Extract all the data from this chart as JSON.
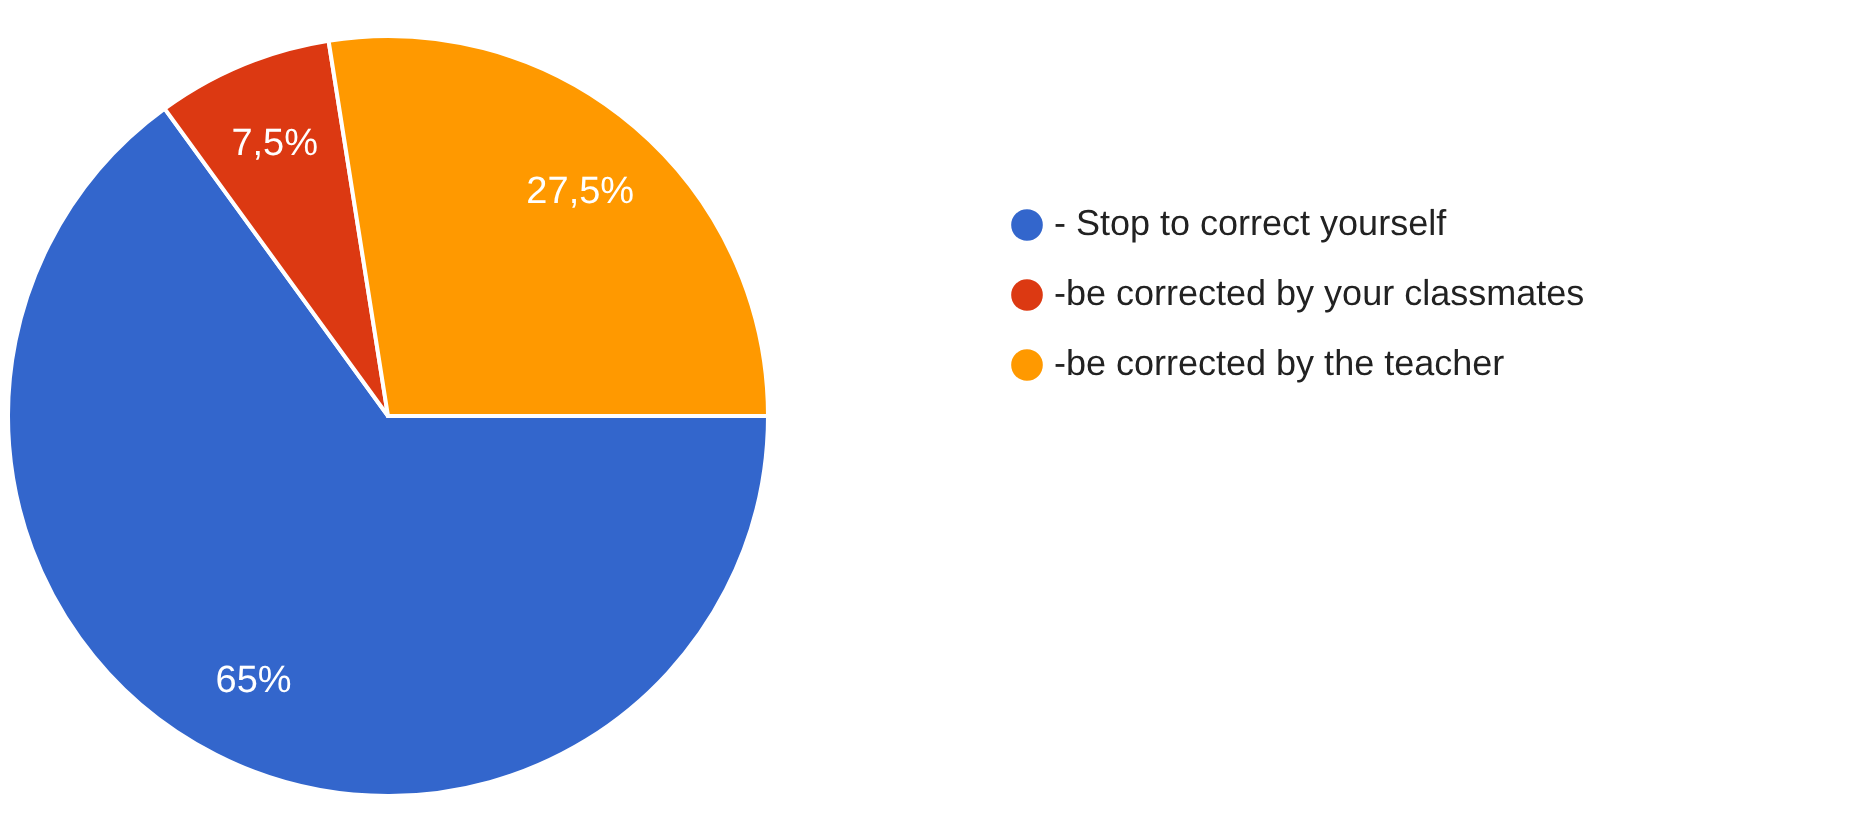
{
  "chart_data": {
    "type": "pie",
    "categories": [
      "- Stop to correct yourself",
      "-be corrected by your classmates",
      "-be corrected by the teacher"
    ],
    "values": [
      65,
      7.5,
      27.5
    ],
    "colors": [
      "#3366cc",
      "#dc3912",
      "#ff9900"
    ],
    "value_labels": [
      "65%",
      "7,5%",
      "27,5%"
    ],
    "legend": "right"
  }
}
